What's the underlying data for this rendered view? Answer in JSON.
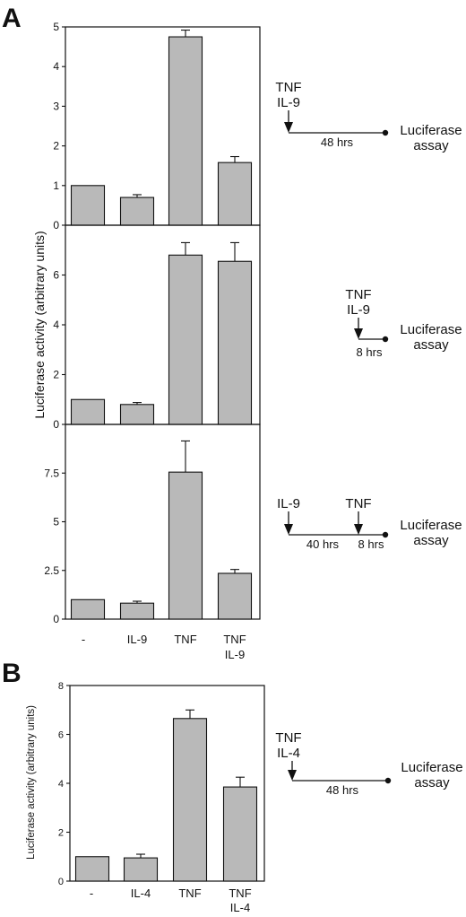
{
  "panel_a": {
    "letter": "A",
    "ylabel": "Luciferase activity (arbitrary units)",
    "categories": [
      {
        "line1": "-",
        "line2": ""
      },
      {
        "line1": "IL-9",
        "line2": ""
      },
      {
        "line1": "TNF",
        "line2": ""
      },
      {
        "line1": "TNF",
        "line2": "IL-9"
      }
    ]
  },
  "panel_b": {
    "letter": "B",
    "ylabel": "Luciferase activity (arbitrary units)",
    "categories": [
      {
        "line1": "-",
        "line2": ""
      },
      {
        "line1": "IL-4",
        "line2": ""
      },
      {
        "line1": "TNF",
        "line2": ""
      },
      {
        "line1": "TNF",
        "line2": "IL-4"
      }
    ]
  },
  "colors": {
    "bar_fill": "#b9b9b9",
    "ink": "#111111"
  },
  "chart_data": [
    {
      "type": "bar",
      "panel": "A",
      "categories": [
        "-",
        "IL-9",
        "TNF",
        "TNF IL-9"
      ],
      "values": [
        1.0,
        0.7,
        4.75,
        1.58
      ],
      "errors": [
        0.0,
        0.07,
        0.17,
        0.15
      ],
      "ylim": [
        0,
        5
      ],
      "yticks": [
        0,
        1,
        2,
        3,
        4,
        5
      ],
      "ytick_labels": [
        "0",
        "1",
        "2",
        "3",
        "4",
        "5"
      ],
      "schematic": {
        "label_a1": "TNF",
        "label_a2": "IL-9",
        "duration": "48 hrs",
        "end1": "Luciferase",
        "end2": "assay"
      }
    },
    {
      "type": "bar",
      "panel": "A",
      "categories": [
        "-",
        "IL-9",
        "TNF",
        "TNF IL-9"
      ],
      "values": [
        1.0,
        0.8,
        6.8,
        6.55
      ],
      "errors": [
        0.0,
        0.08,
        0.5,
        0.75
      ],
      "ylim": [
        0,
        8
      ],
      "yticks": [
        0,
        2,
        4,
        6
      ],
      "ytick_labels": [
        "0",
        "2",
        "4",
        "6"
      ],
      "schematic": {
        "label_a1": "TNF",
        "label_a2": "IL-9",
        "duration": "8 hrs",
        "end1": "Luciferase",
        "end2": "assay"
      }
    },
    {
      "type": "bar",
      "panel": "A",
      "categories": [
        "-",
        "IL-9",
        "TNF",
        "TNF IL-9"
      ],
      "values": [
        1.0,
        0.82,
        7.55,
        2.35
      ],
      "errors": [
        0.0,
        0.1,
        1.6,
        0.2
      ],
      "ylim": [
        0,
        10
      ],
      "yticks": [
        0,
        2.5,
        5,
        7.5
      ],
      "ytick_labels": [
        "0",
        "2.5",
        "5",
        "7.5"
      ],
      "schematic": {
        "label_a1": "IL-9",
        "label_b1": "TNF",
        "duration1": "40 hrs",
        "duration2": "8 hrs",
        "end1": "Luciferase",
        "end2": "assay"
      }
    },
    {
      "type": "bar",
      "panel": "B",
      "categories": [
        "-",
        "IL-4",
        "TNF",
        "TNF IL-4"
      ],
      "values": [
        1.0,
        0.95,
        6.65,
        3.85
      ],
      "errors": [
        0.0,
        0.15,
        0.35,
        0.4
      ],
      "ylim": [
        0,
        8
      ],
      "yticks": [
        0,
        2,
        4,
        6,
        8
      ],
      "ytick_labels": [
        "0",
        "2",
        "4",
        "6",
        "8"
      ],
      "schematic": {
        "label_a1": "TNF",
        "label_a2": "IL-4",
        "duration": "48 hrs",
        "end1": "Luciferase",
        "end2": "assay"
      }
    }
  ]
}
